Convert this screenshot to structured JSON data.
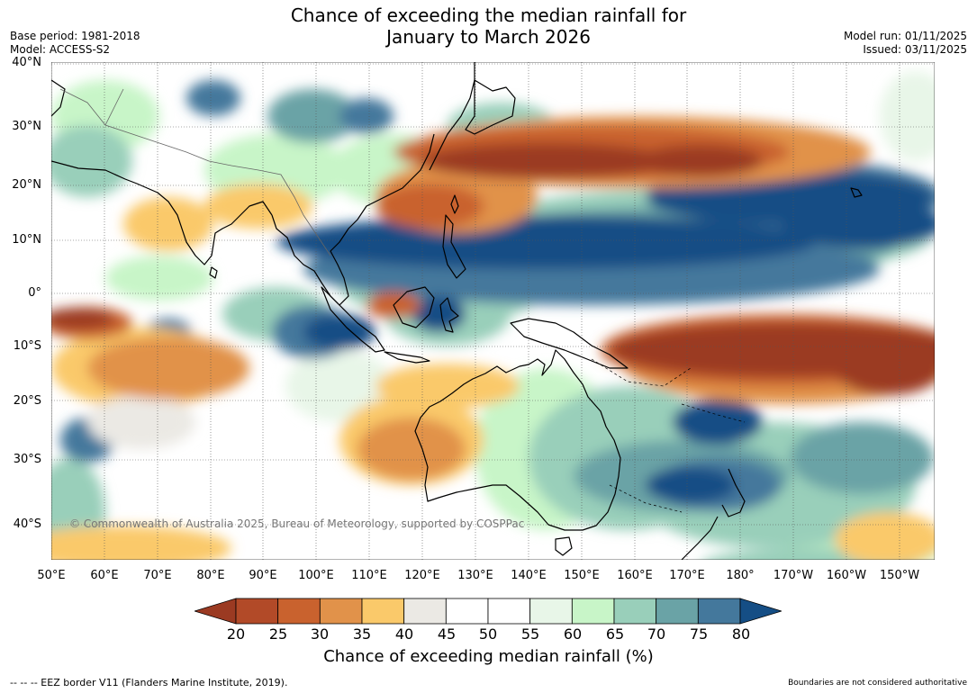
{
  "title": {
    "line1": "Chance of exceeding the median rainfall for",
    "line2": "January to March 2026"
  },
  "meta": {
    "base_period": "Base period: 1981-2018",
    "model": "Model: ACCESS-S2",
    "model_run": "Model run: 01/11/2025",
    "issued": "Issued: 03/11/2025"
  },
  "map": {
    "copyright": "© Commonwealth of Australia 2025, Bureau of Meteorology, supported by COSPPac",
    "lat_labels": [
      "40°N",
      "30°N",
      "20°N",
      "10°N",
      "0°",
      "10°S",
      "20°S",
      "30°S",
      "40°S"
    ],
    "lon_labels": [
      "50°E",
      "60°E",
      "70°E",
      "80°E",
      "90°E",
      "100°E",
      "110°E",
      "120°E",
      "130°E",
      "140°E",
      "150°E",
      "160°E",
      "170°E",
      "180°",
      "170°W",
      "160°W",
      "150°W"
    ]
  },
  "colorbar": {
    "ticks": [
      "20",
      "25",
      "30",
      "35",
      "40",
      "45",
      "50",
      "55",
      "60",
      "65",
      "70",
      "75",
      "80"
    ],
    "colors": [
      "#9b3a22",
      "#b24a28",
      "#c9622e",
      "#e1924a",
      "#fac96a",
      "#ebe9e4",
      "#ffffff",
      "#ffffff",
      "#e8f6e8",
      "#c8f5c8",
      "#99cfba",
      "#6aa3a6",
      "#44789c",
      "#154e85"
    ],
    "label": "Chance of exceeding median rainfall (%)"
  },
  "footer": {
    "eez": "--  --  -- EEZ border V11 (Flanders Marine Institute, 2019).",
    "disclaimer": "Boundaries are not considered authoritative"
  }
}
